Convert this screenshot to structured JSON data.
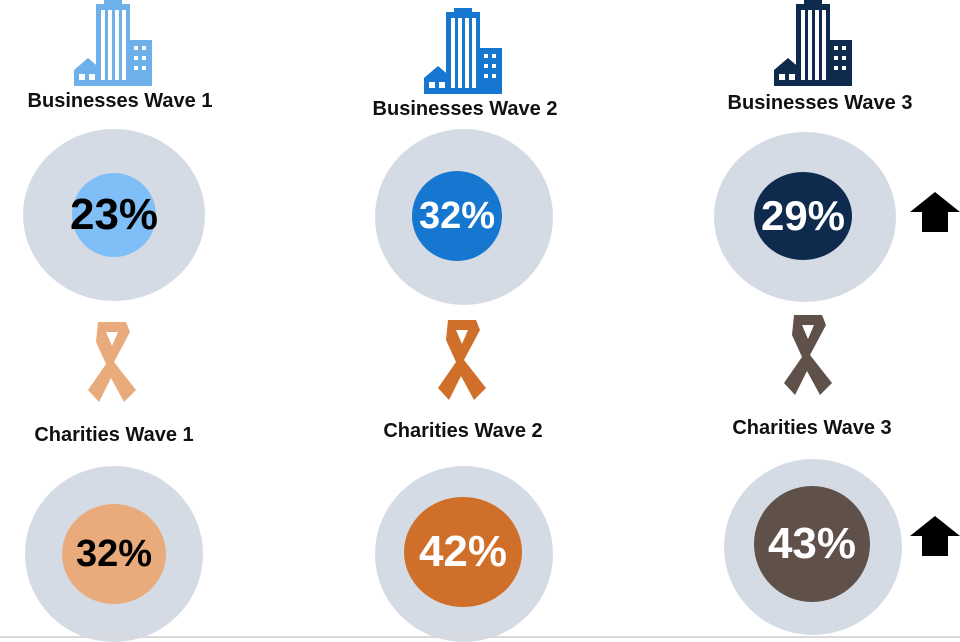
{
  "chart_data": {
    "type": "table",
    "title": "",
    "groups": [
      {
        "name": "Businesses Wave 1",
        "value": 23,
        "display": "23%",
        "color": "#7fbef6",
        "text_color": "#000000",
        "icon": "office-building-icon"
      },
      {
        "name": "Businesses Wave 2",
        "value": 32,
        "display": "32%",
        "color": "#1577cf",
        "text_color": "#ffffff",
        "icon": "office-building-icon"
      },
      {
        "name": "Businesses Wave 3",
        "value": 29,
        "display": "29%",
        "color": "#0e2a4d",
        "text_color": "#ffffff",
        "icon": "office-building-icon",
        "trend": "up"
      },
      {
        "name": "Charities Wave 1",
        "value": 32,
        "display": "32%",
        "color": "#e9ab7b",
        "text_color": "#000000",
        "icon": "awareness-ribbon-icon"
      },
      {
        "name": "Charities Wave 2",
        "value": 42,
        "display": "42%",
        "color": "#cf6f2a",
        "text_color": "#ffffff",
        "icon": "awareness-ribbon-icon"
      },
      {
        "name": "Charities Wave 3",
        "value": 43,
        "display": "43%",
        "color": "#5f514a",
        "text_color": "#ffffff",
        "icon": "awareness-ribbon-icon",
        "trend": "up"
      }
    ],
    "outer_color": "#d5dbe5"
  }
}
